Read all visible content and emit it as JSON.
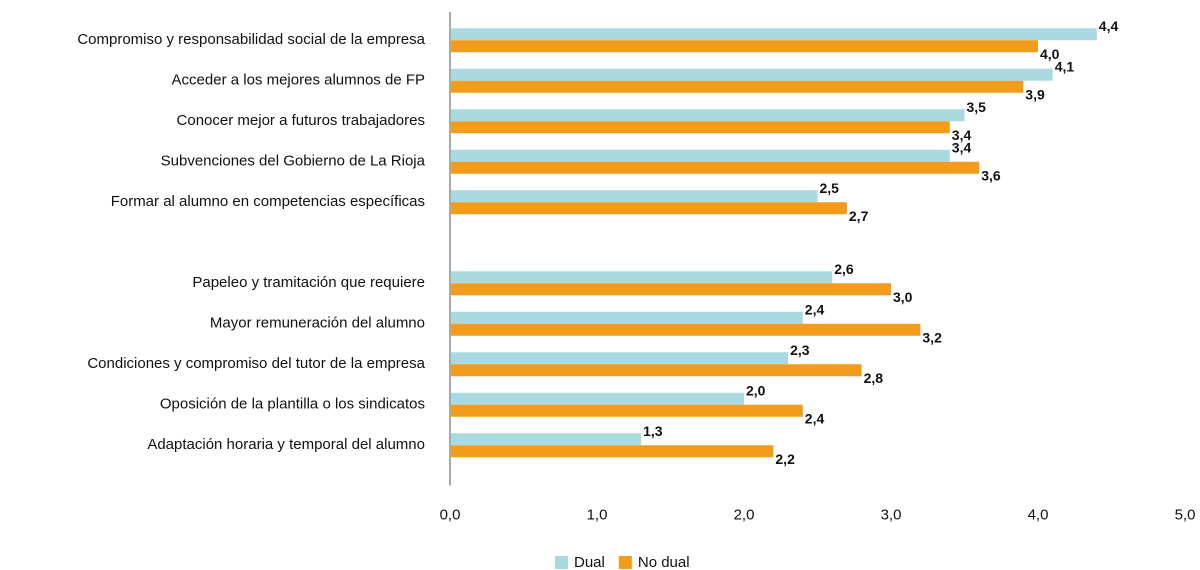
{
  "chart_data": {
    "type": "hbar",
    "categories": [
      "Compromiso y responsabilidad social de la empresa",
      "Acceder a los mejores alumnos de FP",
      "Conocer mejor a futuros trabajadores",
      "Subvenciones del Gobierno de La Rioja",
      "Formar al alumno en competencias específicas",
      null,
      "Papeleo y tramitación que requiere",
      "Mayor remuneración del alumno",
      "Condiciones y compromiso del tutor de la empresa",
      "Oposición de la plantilla o los sindicatos",
      "Adaptación horaria y temporal del alumno"
    ],
    "series": [
      {
        "name": "Dual",
        "color": "#a9d9e1",
        "values": [
          4.4,
          4.1,
          3.5,
          3.4,
          2.5,
          null,
          2.6,
          2.4,
          2.3,
          2.0,
          1.3
        ],
        "value_labels": [
          "4,4",
          "4,1",
          "3,5",
          "3,4",
          "2,5",
          null,
          "2,6",
          "2,4",
          "2,3",
          "2,0",
          "1,3"
        ]
      },
      {
        "name": "No dual",
        "color": "#f39c1b",
        "values": [
          4.0,
          3.9,
          3.4,
          3.6,
          2.7,
          null,
          3.0,
          3.2,
          2.8,
          2.4,
          2.2
        ],
        "value_labels": [
          "4,0",
          "3,9",
          "3,4",
          "3,6",
          "2,7",
          null,
          "3,0",
          "3,2",
          "2,8",
          "2,4",
          "2,2"
        ]
      }
    ],
    "xlim": [
      0,
      5
    ],
    "xticks": [
      {
        "value": 0,
        "label": "0,0"
      },
      {
        "value": 1,
        "label": "1,0"
      },
      {
        "value": 2,
        "label": "2,0"
      },
      {
        "value": 3,
        "label": "3,0"
      },
      {
        "value": 4,
        "label": "4,0"
      },
      {
        "value": 5,
        "label": "5,0"
      }
    ],
    "legend": "bottom"
  }
}
